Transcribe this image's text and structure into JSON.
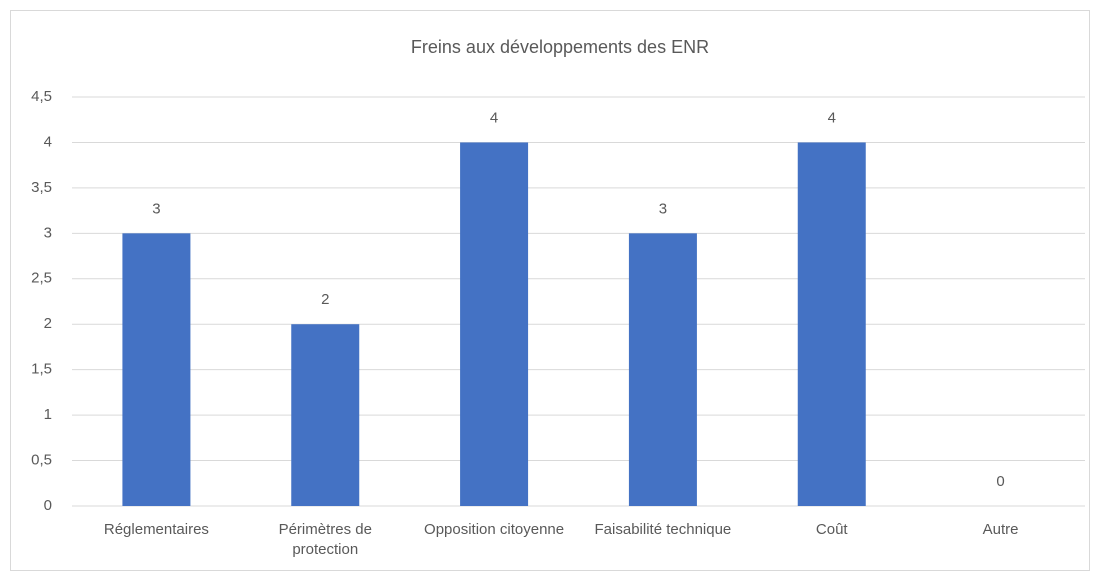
{
  "chart_data": {
    "type": "bar",
    "title": "Freins aux développements des ENR",
    "categories": [
      "Réglementaires",
      "Périmètres de protection",
      "Opposition citoyenne",
      "Faisabilité technique",
      "Coût",
      "Autre"
    ],
    "values": [
      3,
      2,
      4,
      3,
      4,
      0
    ],
    "color": "#4472c4",
    "ylim": [
      0,
      4.5
    ],
    "yticks": [
      0,
      {
        "value": 0.5,
        "label": "0,5"
      },
      1,
      {
        "value": 1.5,
        "label": "1,5"
      },
      2,
      {
        "value": 2.5,
        "label": "2,5"
      },
      3,
      {
        "value": 3.5,
        "label": "3,5"
      },
      4,
      {
        "value": 4.5,
        "label": "4,5"
      }
    ],
    "grid": true
  }
}
